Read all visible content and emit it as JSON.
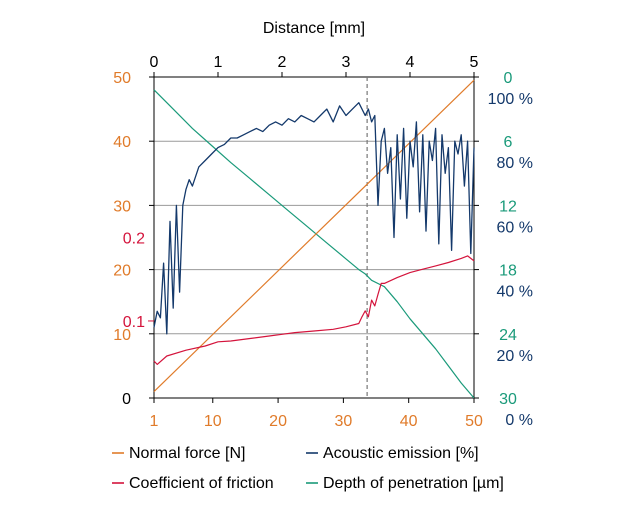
{
  "chart_data": {
    "type": "line",
    "top_axis": {
      "label": "Distance [mm]",
      "range": [
        0,
        5
      ],
      "ticks": [
        "0",
        "1",
        "2",
        "3",
        "4",
        "5"
      ]
    },
    "bottom_axis": {
      "label": "",
      "range": [
        1,
        50
      ],
      "ticks": [
        "1",
        "10",
        "20",
        "30",
        "40",
        "50"
      ]
    },
    "left_axis_force": {
      "range": [
        0,
        50
      ],
      "ticks": [
        "0",
        "10",
        "20",
        "30",
        "40",
        "50"
      ],
      "color": "#e07b2a"
    },
    "left_axis_friction": {
      "ticks": [
        {
          "label": "0.1",
          "value": 0.1
        },
        {
          "label": "0.2",
          "value": 0.2
        }
      ],
      "color": "#d4143c"
    },
    "right_axis_depth": {
      "range": [
        0,
        30
      ],
      "inverted": true,
      "ticks": [
        "0",
        "6",
        "12",
        "18",
        "24",
        "30"
      ],
      "color": "#1a9a7a"
    },
    "right_axis_acoustic": {
      "range": [
        0,
        100
      ],
      "ticks": [
        "0 %",
        "20 %",
        "40 %",
        "60 %",
        "80 %",
        "100 %"
      ],
      "color": "#14396b"
    },
    "grid": true,
    "vline_distance_mm": 3.33,
    "series": [
      {
        "name": "Normal force [N]",
        "color": "#e07b2a",
        "axis": "force",
        "x_mm": [
          0,
          5
        ],
        "y": [
          1,
          49.5
        ]
      },
      {
        "name": "Acoustic emission [%]",
        "color": "#14396b",
        "axis": "acoustic",
        "x_mm": [
          0.0,
          0.05,
          0.1,
          0.15,
          0.2,
          0.25,
          0.3,
          0.35,
          0.4,
          0.45,
          0.5,
          0.55,
          0.6,
          0.7,
          0.8,
          0.9,
          1.0,
          1.1,
          1.2,
          1.3,
          1.4,
          1.5,
          1.6,
          1.7,
          1.8,
          1.9,
          2.0,
          2.1,
          2.2,
          2.3,
          2.4,
          2.5,
          2.6,
          2.7,
          2.8,
          2.9,
          3.0,
          3.1,
          3.2,
          3.3,
          3.35,
          3.4,
          3.45,
          3.5,
          3.55,
          3.6,
          3.65,
          3.7,
          3.75,
          3.8,
          3.85,
          3.9,
          3.95,
          4.0,
          4.05,
          4.1,
          4.15,
          4.2,
          4.25,
          4.3,
          4.35,
          4.4,
          4.45,
          4.5,
          4.55,
          4.6,
          4.65,
          4.7,
          4.75,
          4.8,
          4.85,
          4.9,
          4.95,
          5.0
        ],
        "y": [
          22,
          27,
          25,
          42,
          20,
          55,
          28,
          60,
          33,
          60,
          65,
          68,
          66,
          72,
          74,
          76,
          78,
          79,
          81,
          81,
          82,
          83,
          84,
          83,
          85,
          86,
          85,
          87,
          86,
          88,
          87,
          86,
          88,
          90,
          86,
          91,
          88,
          90,
          92,
          88,
          90,
          86,
          88,
          60,
          80,
          84,
          70,
          78,
          50,
          82,
          62,
          84,
          56,
          80,
          72,
          86,
          58,
          82,
          52,
          80,
          74,
          84,
          48,
          82,
          70,
          78,
          46,
          80,
          76,
          82,
          66,
          80,
          45,
          78
        ]
      },
      {
        "name": "Coefficient of friction",
        "color": "#d4143c",
        "axis": "friction",
        "x_mm": [
          0.0,
          0.05,
          0.2,
          0.5,
          0.8,
          1.0,
          1.2,
          1.5,
          1.8,
          2.0,
          2.2,
          2.5,
          2.8,
          3.0,
          3.2,
          3.25,
          3.3,
          3.35,
          3.4,
          3.45,
          3.5,
          3.55,
          3.6,
          3.8,
          4.0,
          4.2,
          4.4,
          4.6,
          4.8,
          4.9,
          5.0
        ],
        "y": [
          0.052,
          0.048,
          0.058,
          0.065,
          0.07,
          0.075,
          0.076,
          0.079,
          0.082,
          0.084,
          0.086,
          0.088,
          0.09,
          0.093,
          0.097,
          0.105,
          0.112,
          0.105,
          0.125,
          0.118,
          0.132,
          0.145,
          0.145,
          0.152,
          0.158,
          0.162,
          0.166,
          0.17,
          0.175,
          0.178,
          0.172
        ]
      },
      {
        "name": "Depth of penetration [µm]",
        "color": "#1a9a7a",
        "axis": "depth",
        "x_mm": [
          0.0,
          0.3,
          0.6,
          0.9,
          1.2,
          1.5,
          1.8,
          2.1,
          2.4,
          2.7,
          3.0,
          3.2,
          3.3,
          3.4,
          3.6,
          3.8,
          4.0,
          4.2,
          4.4,
          4.6,
          4.8,
          5.0
        ],
        "y": [
          1.2,
          3.0,
          4.8,
          6.4,
          8.0,
          9.5,
          11.0,
          12.5,
          14.0,
          15.5,
          17.0,
          18.0,
          18.4,
          19.0,
          19.6,
          21.0,
          22.6,
          24.0,
          25.4,
          27.0,
          28.6,
          30.0
        ]
      }
    ],
    "legend": {
      "placement": "bottom",
      "entries": [
        "Normal force [N]",
        "Acoustic emission [%]",
        "Coefficient of friction",
        "Depth of penetration [µm]"
      ]
    }
  }
}
